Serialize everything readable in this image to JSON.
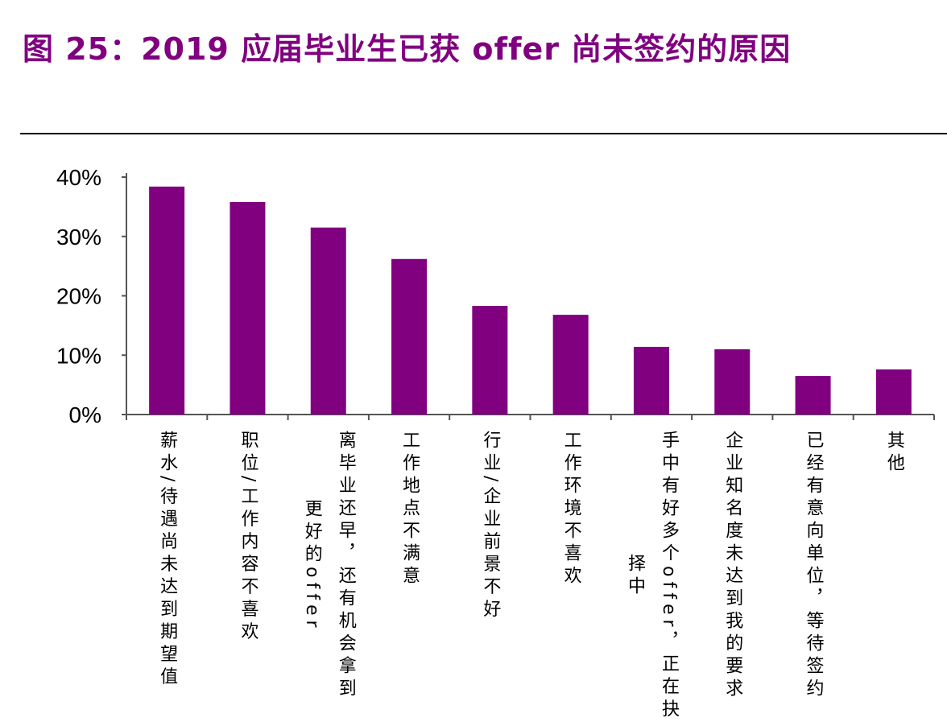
{
  "title": "图 25：2019 应届毕业生已获 offer 尚未签约的原因",
  "chart_data": {
    "type": "bar",
    "title": "图 25：2019 应届毕业生已获 offer 尚未签约的原因",
    "categories": [
      "薪水/待遇尚未达到期望值",
      "职位/工作内容不喜欢",
      "离毕业还早，还有机会拿到更好的offer",
      "工作地点不满意",
      "行业/企业前景不好",
      "工作环境不喜欢",
      "手中有好多个offer，正在抉择中",
      "企业知名度未达到我的要求",
      "已经有意向单位，等待签约",
      "其他"
    ],
    "category_lines": [
      [
        "薪水/待遇尚未达到期望值"
      ],
      [
        "职位/工作内容不喜欢"
      ],
      [
        "离毕业还早，还有机会拿到",
        "更好的offer"
      ],
      [
        "工作地点不满意"
      ],
      [
        "行业/企业前景不好"
      ],
      [
        "工作环境不喜欢"
      ],
      [
        "手中有好多个offer，正在抉",
        "择中"
      ],
      [
        "企业知名度未达到我的要求"
      ],
      [
        "已经有意向单位，等待签约"
      ],
      [
        "其他"
      ]
    ],
    "values": [
      38.4,
      35.8,
      31.5,
      26.2,
      18.3,
      16.8,
      11.4,
      11.0,
      6.5,
      7.6
    ],
    "ylim": [
      0,
      40
    ],
    "yticks": [
      "0%",
      "10%",
      "20%",
      "30%",
      "40%"
    ],
    "xlabel": "",
    "ylabel": "",
    "grid": false,
    "bar_color": "#800080",
    "title_color": "#800080"
  }
}
